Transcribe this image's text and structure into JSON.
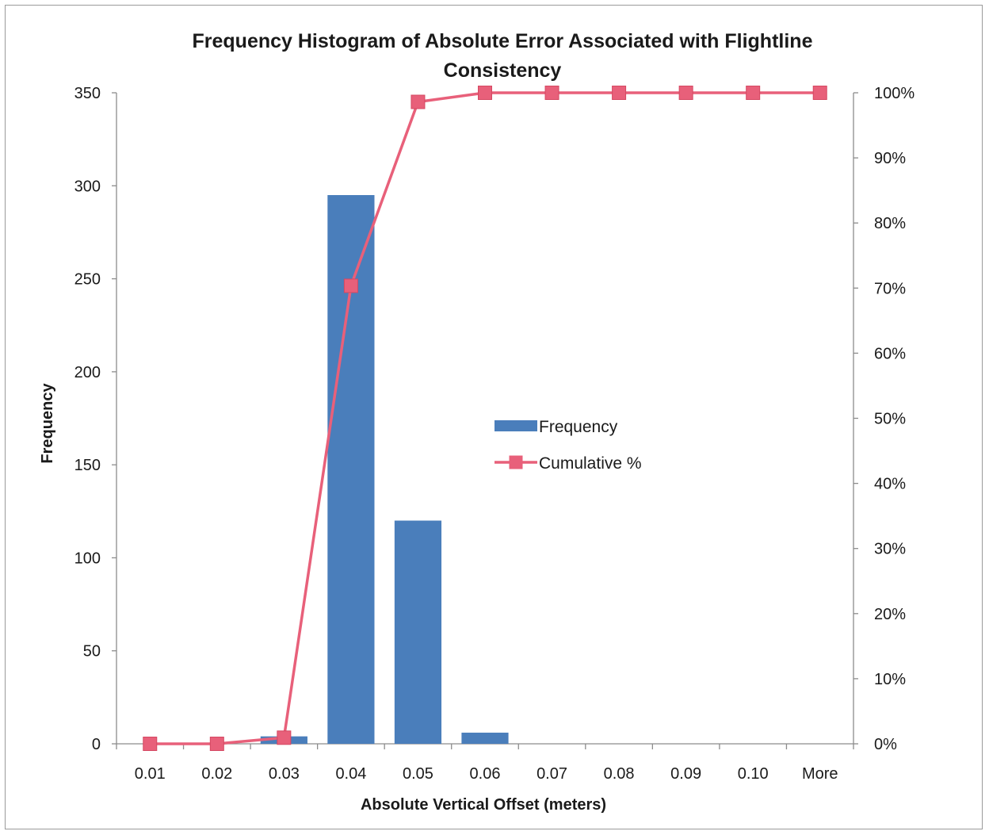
{
  "chart_data": {
    "type": "bar",
    "title_line1": "Frequency Histogram of Absolute Error Associated with Flightline",
    "title_line2": "Consistency",
    "xlabel": "Absolute Vertical Offset (meters)",
    "ylabel": "Frequency",
    "categories": [
      "0.01",
      "0.02",
      "0.03",
      "0.04",
      "0.05",
      "0.06",
      "0.07",
      "0.08",
      "0.09",
      "0.10",
      "More"
    ],
    "series": [
      {
        "name": "Frequency",
        "kind": "bar",
        "axis": "left",
        "color": "#4a7ebb",
        "values": [
          0,
          0,
          4,
          295,
          120,
          6,
          0,
          0,
          0,
          0,
          0
        ]
      },
      {
        "name": "Cumulative %",
        "kind": "line",
        "axis": "right",
        "color": "#e8607a",
        "marker": "square",
        "values": [
          0,
          0,
          0.94,
          70.35,
          98.6,
          100,
          100,
          100,
          100,
          100,
          100
        ]
      }
    ],
    "ylim_left": [
      0,
      350
    ],
    "yticks_left": [
      "0",
      "50",
      "100",
      "150",
      "200",
      "250",
      "300",
      "350"
    ],
    "ylim_right": [
      0,
      100
    ],
    "yticks_right": [
      "0%",
      "10%",
      "20%",
      "30%",
      "40%",
      "50%",
      "60%",
      "70%",
      "80%",
      "90%",
      "100%"
    ],
    "grid": false,
    "legend_position": "center"
  }
}
